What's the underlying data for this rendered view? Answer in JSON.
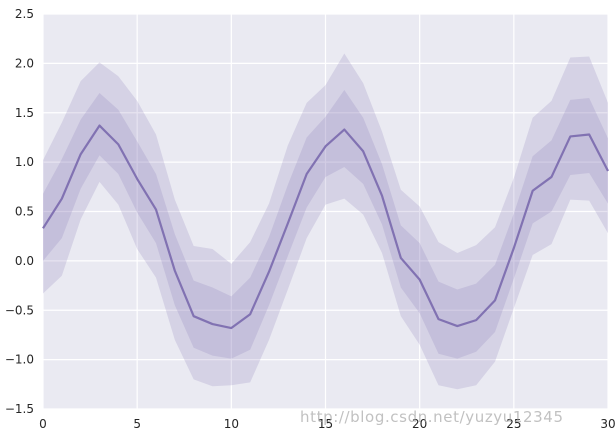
{
  "chart_data": {
    "type": "line",
    "title": "",
    "xlabel": "",
    "ylabel": "",
    "xlim": [
      0,
      30
    ],
    "ylim": [
      -1.5,
      2.5
    ],
    "xticks": [
      0,
      5,
      10,
      15,
      20,
      25,
      30
    ],
    "xtick_labels": [
      "0",
      "5",
      "10",
      "15",
      "20",
      "25",
      "30"
    ],
    "yticks": [
      -1.5,
      -1.0,
      -0.5,
      0.0,
      0.5,
      1.0,
      1.5,
      2.0,
      2.5
    ],
    "ytick_labels": [
      "−1.5",
      "−1.0",
      "−0.5",
      "0.0",
      "0.5",
      "1.0",
      "1.5",
      "2.0",
      "2.5"
    ],
    "grid": true,
    "colors": {
      "background": "#EAEAF2",
      "grid": "#FFFFFF",
      "line": "#8172B2",
      "band": "#8172B2"
    },
    "x": [
      0,
      1,
      2,
      3,
      4,
      5,
      6,
      7,
      8,
      9,
      10,
      11,
      12,
      13,
      14,
      15,
      16,
      17,
      18,
      19,
      20,
      21,
      22,
      23,
      24,
      25,
      26,
      27,
      28,
      29,
      30
    ],
    "series": [
      {
        "values": [
          0.33,
          0.63,
          1.08,
          1.37,
          1.18,
          0.83,
          0.52,
          -0.1,
          -0.56,
          -0.64,
          -0.68,
          -0.54,
          -0.11,
          0.38,
          0.88,
          1.16,
          1.33,
          1.11,
          0.66,
          0.03,
          -0.19,
          -0.59,
          -0.66,
          -0.6,
          -0.4,
          0.13,
          0.71,
          0.85,
          1.26,
          1.28,
          0.91
        ],
        "bands": [
          {
            "lower": [
              -0.33,
              -0.15,
              0.42,
              0.8,
              0.57,
              0.12,
              -0.17,
              -0.8,
              -1.2,
              -1.27,
              -1.26,
              -1.23,
              -0.8,
              -0.29,
              0.23,
              0.57,
              0.63,
              0.47,
              0.08,
              -0.56,
              -0.85,
              -1.26,
              -1.3,
              -1.26,
              -1.02,
              -0.48,
              0.06,
              0.17,
              0.62,
              0.61,
              0.28
            ],
            "upper": [
              1.02,
              1.4,
              1.82,
              2.01,
              1.87,
              1.62,
              1.28,
              0.62,
              0.15,
              0.12,
              -0.03,
              0.19,
              0.58,
              1.17,
              1.6,
              1.78,
              2.1,
              1.8,
              1.31,
              0.72,
              0.55,
              0.19,
              0.08,
              0.16,
              0.34,
              0.84,
              1.45,
              1.62,
              2.06,
              2.07,
              1.6
            ]
          },
          {
            "lower": [
              0.0,
              0.23,
              0.73,
              1.07,
              0.88,
              0.49,
              0.18,
              -0.45,
              -0.88,
              -0.96,
              -0.99,
              -0.9,
              -0.45,
              0.05,
              0.54,
              0.85,
              0.95,
              0.78,
              0.37,
              -0.27,
              -0.53,
              -0.94,
              -0.99,
              -0.92,
              -0.72,
              -0.18,
              0.38,
              0.5,
              0.87,
              0.89,
              0.58
            ],
            "upper": [
              0.68,
              1.03,
              1.43,
              1.7,
              1.53,
              1.21,
              0.88,
              0.27,
              -0.2,
              -0.27,
              -0.36,
              -0.17,
              0.24,
              0.77,
              1.25,
              1.46,
              1.73,
              1.45,
              0.98,
              0.36,
              0.18,
              -0.21,
              -0.29,
              -0.23,
              -0.04,
              0.48,
              1.06,
              1.22,
              1.63,
              1.65,
              1.24
            ]
          }
        ]
      }
    ]
  },
  "watermark": "http://blog.csdn.net/yuzyu12345"
}
